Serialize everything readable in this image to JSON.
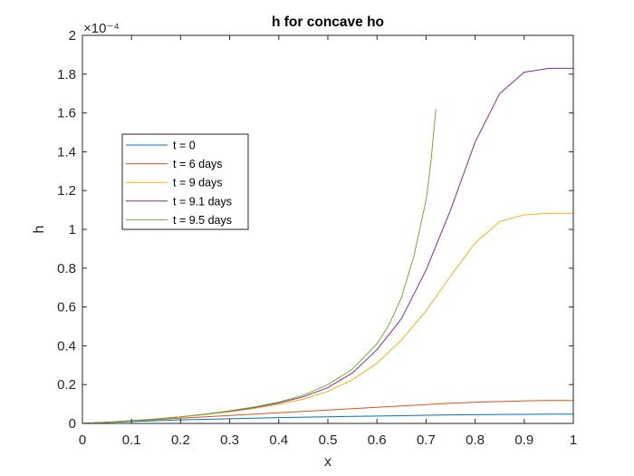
{
  "chart_data": {
    "type": "line",
    "title": "h for concave ho",
    "xlabel": "x",
    "ylabel": "h",
    "y_exponent_label": "×10⁻⁴",
    "xlim": [
      0,
      1
    ],
    "ylim": [
      0,
      2
    ],
    "xticks": [
      "0",
      "0.1",
      "0.2",
      "0.3",
      "0.4",
      "0.5",
      "0.6",
      "0.7",
      "0.8",
      "0.9",
      "1"
    ],
    "yticks": [
      "0",
      "0.2",
      "0.4",
      "0.6",
      "0.8",
      "1",
      "1.2",
      "1.4",
      "1.6",
      "1.8",
      "2"
    ],
    "grid": false,
    "legend_position": "upper-left",
    "series": [
      {
        "name": "t = 0",
        "color": "#0072BD",
        "x": [
          0,
          0.05,
          0.1,
          0.15,
          0.2,
          0.25,
          0.3,
          0.35,
          0.4,
          0.45,
          0.5,
          0.55,
          0.6,
          0.65,
          0.7,
          0.75,
          0.8,
          0.85,
          0.9,
          0.95,
          1.0
        ],
        "y": [
          0,
          0.005,
          0.01,
          0.014,
          0.018,
          0.021,
          0.024,
          0.027,
          0.03,
          0.032,
          0.034,
          0.036,
          0.038,
          0.04,
          0.042,
          0.044,
          0.045,
          0.046,
          0.047,
          0.048,
          0.048
        ]
      },
      {
        "name": "t = 6 days",
        "color": "#D95319",
        "x": [
          0,
          0.05,
          0.1,
          0.15,
          0.2,
          0.25,
          0.3,
          0.35,
          0.4,
          0.45,
          0.5,
          0.55,
          0.6,
          0.65,
          0.7,
          0.75,
          0.8,
          0.85,
          0.9,
          0.95,
          1.0
        ],
        "y": [
          0,
          0.006,
          0.013,
          0.02,
          0.027,
          0.034,
          0.041,
          0.048,
          0.055,
          0.062,
          0.069,
          0.076,
          0.083,
          0.09,
          0.097,
          0.104,
          0.109,
          0.113,
          0.116,
          0.118,
          0.118
        ]
      },
      {
        "name": "t = 9 days",
        "color": "#EDB120",
        "x": [
          0,
          0.05,
          0.1,
          0.15,
          0.2,
          0.25,
          0.3,
          0.35,
          0.4,
          0.45,
          0.5,
          0.55,
          0.6,
          0.65,
          0.7,
          0.75,
          0.8,
          0.85,
          0.9,
          0.95,
          1.0
        ],
        "y": [
          0,
          0.006,
          0.014,
          0.023,
          0.033,
          0.046,
          0.06,
          0.077,
          0.098,
          0.125,
          0.165,
          0.225,
          0.31,
          0.43,
          0.58,
          0.76,
          0.93,
          1.04,
          1.075,
          1.083,
          1.083
        ]
      },
      {
        "name": "t = 9.1 days",
        "color": "#7E2F8E",
        "x": [
          0,
          0.05,
          0.1,
          0.15,
          0.2,
          0.25,
          0.3,
          0.35,
          0.4,
          0.45,
          0.5,
          0.55,
          0.6,
          0.65,
          0.7,
          0.75,
          0.8,
          0.85,
          0.9,
          0.95,
          1.0
        ],
        "y": [
          0,
          0.006,
          0.014,
          0.023,
          0.034,
          0.047,
          0.063,
          0.082,
          0.105,
          0.137,
          0.185,
          0.26,
          0.38,
          0.54,
          0.79,
          1.1,
          1.45,
          1.7,
          1.81,
          1.83,
          1.83
        ]
      },
      {
        "name": "t = 9.5 days",
        "color": "#77AC30",
        "x": [
          0,
          0.05,
          0.1,
          0.15,
          0.2,
          0.25,
          0.3,
          0.35,
          0.4,
          0.45,
          0.5,
          0.55,
          0.6,
          0.625,
          0.65,
          0.675,
          0.7,
          0.71,
          0.72
        ],
        "y": [
          0,
          0.006,
          0.014,
          0.023,
          0.034,
          0.048,
          0.065,
          0.085,
          0.11,
          0.145,
          0.2,
          0.28,
          0.41,
          0.51,
          0.65,
          0.86,
          1.15,
          1.35,
          1.62
        ]
      }
    ]
  }
}
